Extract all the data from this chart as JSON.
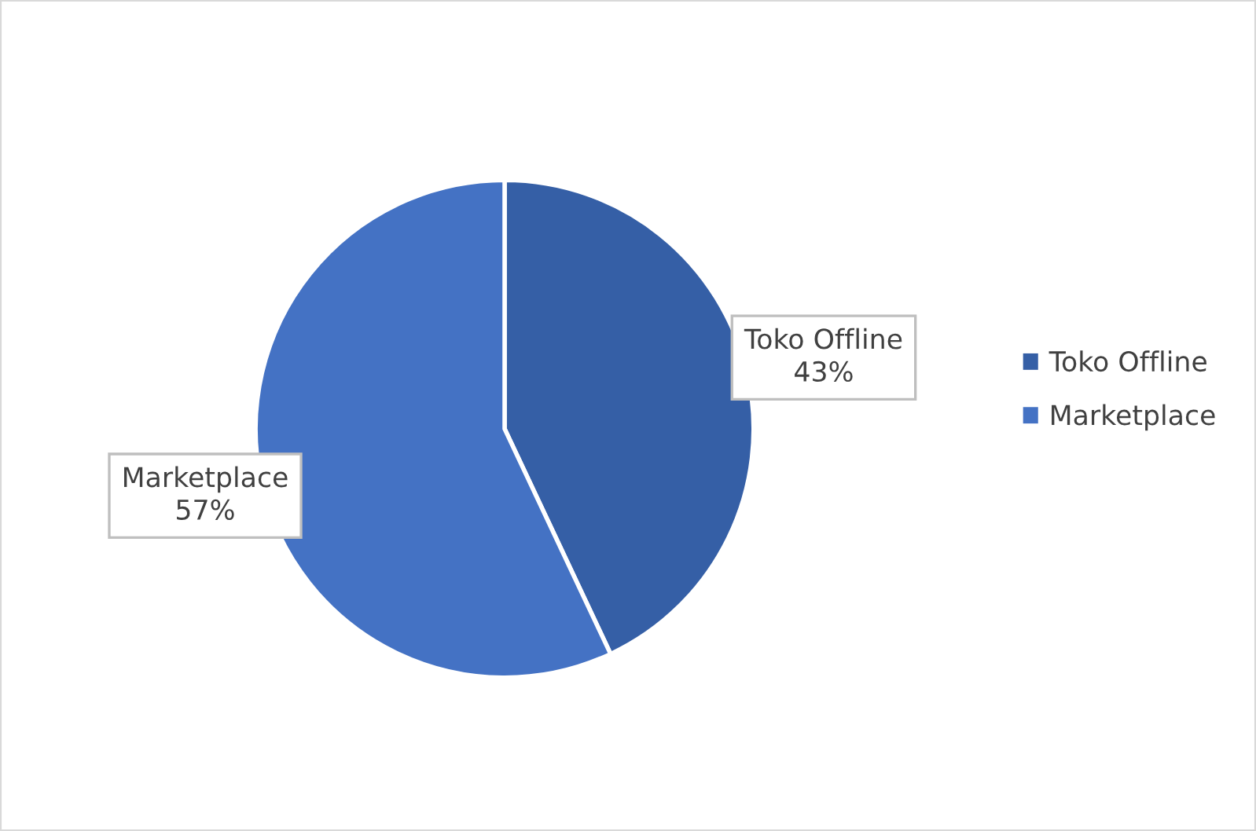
{
  "chart_data": {
    "type": "pie",
    "categories": [
      "Toko Offline",
      "Marketplace"
    ],
    "values": [
      43,
      57
    ],
    "colors": [
      "#355fa6",
      "#4472c4"
    ],
    "value_labels": [
      "43%",
      "57%"
    ],
    "legend": "right"
  }
}
